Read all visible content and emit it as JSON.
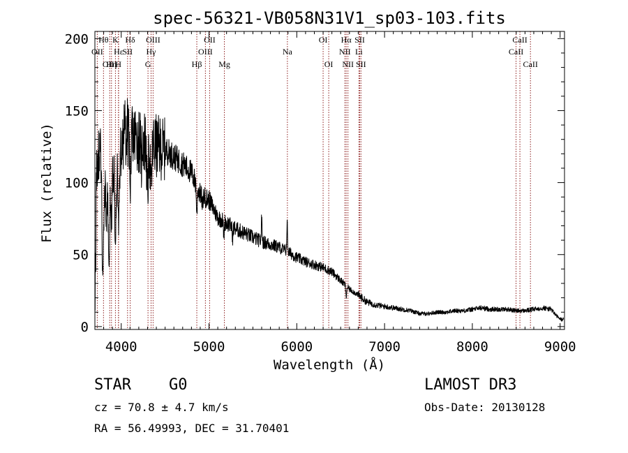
{
  "chart_data": {
    "type": "line",
    "title": "spec-56321-VB058N31V1_sp03-103.fits",
    "xlabel": "Wavelength (Å)",
    "ylabel": "Flux (relative)",
    "xlim": [
      3700,
      9050
    ],
    "ylim": [
      -2,
      205
    ],
    "xticks": [
      4000,
      5000,
      6000,
      7000,
      8000,
      9000
    ],
    "xtick_labels": [
      "4000",
      "5000",
      "6000",
      "7000",
      "8000",
      "9000"
    ],
    "yticks": [
      0,
      50,
      100,
      150,
      200
    ],
    "ytick_labels": [
      "0",
      "50",
      "100",
      "150",
      "200"
    ],
    "line_color": "#000000",
    "marker_color": "#8b1a1a",
    "continuum": [
      [
        3700,
        95
      ],
      [
        3750,
        125
      ],
      [
        3800,
        110
      ],
      [
        3850,
        115
      ],
      [
        3900,
        118
      ],
      [
        3950,
        120
      ],
      [
        4000,
        125
      ],
      [
        4050,
        135
      ],
      [
        4100,
        135
      ],
      [
        4200,
        130
      ],
      [
        4300,
        128
      ],
      [
        4400,
        125
      ],
      [
        4500,
        123
      ],
      [
        4600,
        118
      ],
      [
        4700,
        113
      ],
      [
        4800,
        107
      ],
      [
        4900,
        92
      ],
      [
        5000,
        88
      ],
      [
        5100,
        76
      ],
      [
        5200,
        72
      ],
      [
        5300,
        68
      ],
      [
        5400,
        65
      ],
      [
        5500,
        62
      ],
      [
        5600,
        59
      ],
      [
        5700,
        57
      ],
      [
        5800,
        55
      ],
      [
        5900,
        52
      ],
      [
        6000,
        48
      ],
      [
        6100,
        45
      ],
      [
        6200,
        43
      ],
      [
        6300,
        41
      ],
      [
        6400,
        38
      ],
      [
        6500,
        32
      ],
      [
        6600,
        26
      ],
      [
        6700,
        22
      ],
      [
        6800,
        17
      ],
      [
        6900,
        15
      ],
      [
        7000,
        14
      ],
      [
        7100,
        13
      ],
      [
        7200,
        12
      ],
      [
        7300,
        11
      ],
      [
        7400,
        9
      ],
      [
        7500,
        9
      ],
      [
        7600,
        10
      ],
      [
        7700,
        10
      ],
      [
        7800,
        11
      ],
      [
        7900,
        11
      ],
      [
        8000,
        12
      ],
      [
        8100,
        13
      ],
      [
        8200,
        12
      ],
      [
        8300,
        12
      ],
      [
        8400,
        12
      ],
      [
        8500,
        11
      ],
      [
        8600,
        11
      ],
      [
        8700,
        12
      ],
      [
        8800,
        13
      ],
      [
        8900,
        12
      ],
      [
        8950,
        8
      ],
      [
        9000,
        5
      ]
    ],
    "features": [
      [
        3723,
        3
      ],
      [
        3790,
        -80
      ],
      [
        3830,
        -40
      ],
      [
        3860,
        -70
      ],
      [
        3889,
        -45
      ],
      [
        3934,
        -55
      ],
      [
        3970,
        -55
      ],
      [
        4102,
        -35
      ],
      [
        4227,
        -20
      ],
      [
        4300,
        -35
      ],
      [
        4340,
        -30
      ],
      [
        4861,
        -20
      ],
      [
        4924,
        -8
      ],
      [
        5169,
        -10
      ],
      [
        5269,
        -8
      ],
      [
        5600,
        15
      ],
      [
        5890,
        18
      ],
      [
        6563,
        -8
      ]
    ],
    "lines": [
      {
        "label": "Hθ",
        "wavelength": 3798,
        "row": 1
      },
      {
        "label": "K",
        "wavelength": 3934,
        "row": 1
      },
      {
        "label": "Hδ",
        "wavelength": 4102,
        "row": 1
      },
      {
        "label": "OIII",
        "wavelength": 4363,
        "row": 1
      },
      {
        "label": "OII",
        "wavelength": 5007,
        "row": 1
      },
      {
        "label": "OI",
        "wavelength": 6300,
        "row": 1
      },
      {
        "label": "Hα",
        "wavelength": 6563,
        "row": 1
      },
      {
        "label": "SII",
        "wavelength": 6717,
        "row": 1
      },
      {
        "label": "CaII",
        "wavelength": 8542,
        "row": 1
      },
      {
        "label": "OII",
        "wavelength": 3727,
        "row": 2
      },
      {
        "label": "Hε",
        "wavelength": 3970,
        "row": 2
      },
      {
        "label": "SII",
        "wavelength": 4072,
        "row": 2
      },
      {
        "label": "Hγ",
        "wavelength": 4340,
        "row": 2
      },
      {
        "label": "OIII",
        "wavelength": 4959,
        "row": 2
      },
      {
        "label": "Na",
        "wavelength": 5893,
        "row": 2
      },
      {
        "label": "NII",
        "wavelength": 6548,
        "row": 2
      },
      {
        "label": "Li",
        "wavelength": 6708,
        "row": 2
      },
      {
        "label": "CaII",
        "wavelength": 8498,
        "row": 2
      },
      {
        "label": "OIII",
        "wavelength": 3869,
        "row": 3
      },
      {
        "label": "Hη",
        "wavelength": 3889,
        "row": 3
      },
      {
        "label": "H",
        "wavelength": 3968,
        "row": 3
      },
      {
        "label": "G",
        "wavelength": 4305,
        "row": 3
      },
      {
        "label": "Hβ",
        "wavelength": 4861,
        "row": 3
      },
      {
        "label": "Mg",
        "wavelength": 5175,
        "row": 3
      },
      {
        "label": "OI",
        "wavelength": 6364,
        "row": 3
      },
      {
        "label": "NII",
        "wavelength": 6583,
        "row": 3
      },
      {
        "label": "SII",
        "wavelength": 6731,
        "row": 3
      },
      {
        "label": "CaII",
        "wavelength": 8662,
        "row": 3
      }
    ]
  },
  "info": {
    "object_type": "STAR",
    "subclass": "G0",
    "survey": "LAMOST DR3",
    "redshift": "cz = 70.8 ± 4.7 km/s",
    "obs_date": "Obs-Date: 20130128",
    "coords": "RA =  56.49993, DEC =  31.70401"
  }
}
